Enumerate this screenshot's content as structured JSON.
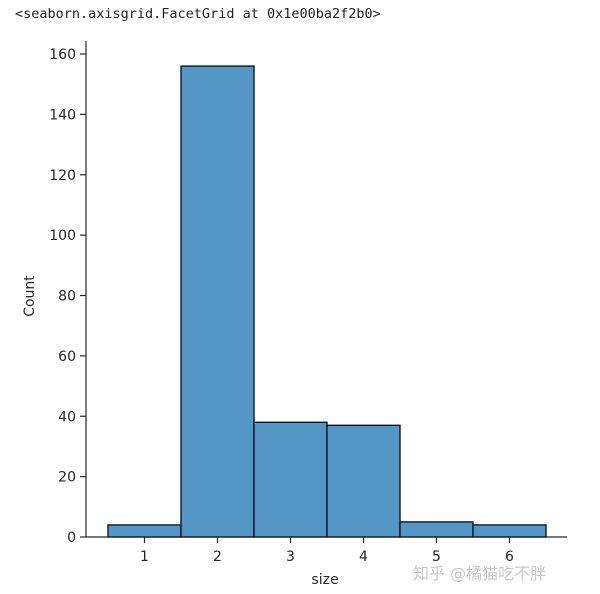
{
  "output": {
    "repr_text": "<seaborn.axisgrid.FacetGrid at 0x1e00ba2f2b0>"
  },
  "watermark": "知乎 @橘猫吃不胖",
  "colors": {
    "bar_fill": "#5497c6",
    "bar_edge": "#0d1a26",
    "axis": "#262626"
  },
  "chart_data": {
    "type": "bar",
    "subtype": "histogram",
    "title": "",
    "xlabel": "size",
    "ylabel": "Count",
    "categories": [
      "1",
      "2",
      "3",
      "4",
      "5",
      "6"
    ],
    "values": [
      4,
      156,
      38,
      37,
      5,
      4
    ],
    "bin_edges": [
      0.5,
      1.5,
      2.5,
      3.5,
      4.5,
      5.5,
      6.5
    ],
    "x_ticks": [
      "1",
      "2",
      "3",
      "4",
      "5",
      "6"
    ],
    "y_ticks": [
      "0",
      "20",
      "40",
      "60",
      "80",
      "100",
      "120",
      "140",
      "160"
    ],
    "ylim": [
      0,
      164
    ],
    "xlim": [
      0.05,
      6.85
    ],
    "grid": false,
    "legend": null,
    "spines": [
      "left",
      "bottom"
    ]
  }
}
